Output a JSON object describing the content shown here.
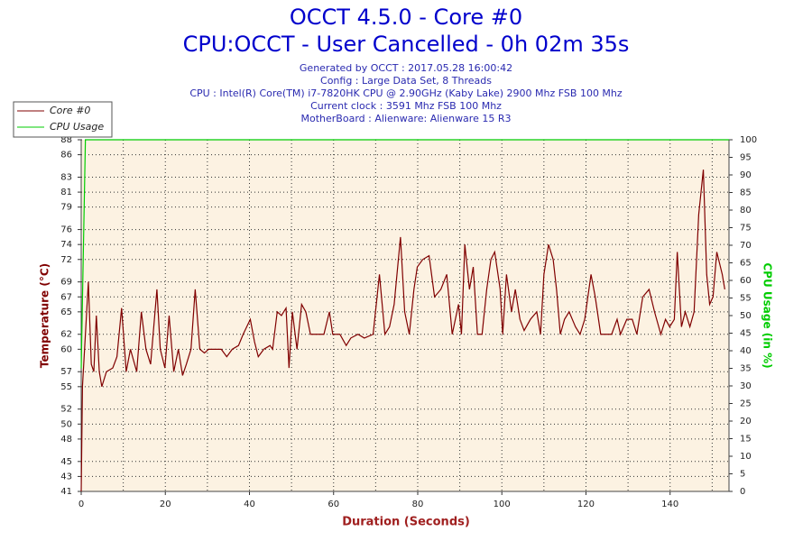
{
  "chart_data": {
    "type": "line",
    "title": "OCCT 4.5.0 - Core #0",
    "subtitle": "CPU:OCCT - User Cancelled - 0h 02m 35s",
    "info": [
      "Generated by OCCT : 2017.05.28 16:00:42",
      "Config : Large Data Set, 8 Threads",
      "CPU : Intel(R) Core(TM) i7-7820HK CPU @ 2.90GHz (Kaby Lake) 2900 Mhz FSB 100 Mhz",
      "Current clock : 3591 Mhz FSB 100 Mhz",
      "MotherBoard : Alienware: Alienware 15 R3"
    ],
    "xlabel": "Duration (Seconds)",
    "ylabel": "Temperature (°C)",
    "y2label": "CPU Usage (in %)",
    "xlim": [
      0,
      154
    ],
    "xticks": [
      0,
      20,
      40,
      60,
      80,
      100,
      120,
      140
    ],
    "ylim": [
      41,
      88
    ],
    "yticks": [
      41,
      43,
      45,
      48,
      50,
      52,
      55,
      57,
      60,
      62,
      65,
      67,
      69,
      72,
      74,
      76,
      79,
      81,
      83,
      86,
      88
    ],
    "y2lim": [
      0,
      100
    ],
    "y2ticks": [
      0,
      5,
      10,
      15,
      20,
      25,
      30,
      35,
      40,
      45,
      50,
      55,
      60,
      65,
      70,
      75,
      80,
      85,
      90,
      95,
      100
    ],
    "grid": true,
    "legend": "upper left",
    "series": [
      {
        "name": "Core #0",
        "color": "#800000",
        "x": [
          0,
          0.3,
          1.7,
          2.4,
          3.0,
          3.6,
          4.3,
          4.9,
          6.0,
          7.5,
          8.5,
          9.6,
          10.7,
          11.7,
          13.2,
          14.3,
          15.4,
          16.5,
          18.0,
          18.8,
          19.9,
          20.9,
          22.0,
          23.1,
          24.1,
          25.0,
          26.1,
          27.1,
          28.2,
          29.3,
          30.3,
          33.3,
          34.6,
          35.9,
          37.4,
          38.5,
          40.2,
          41.2,
          42.1,
          43.4,
          44.9,
          45.5,
          46.6,
          47.6,
          48.7,
          49.4,
          50.2,
          51.3,
          52.4,
          53.4,
          54.5,
          55.6,
          57.7,
          59.0,
          59.8,
          61.5,
          63.0,
          64.1,
          65.8,
          67.3,
          69.4,
          70.9,
          72.2,
          73.3,
          74.4,
          75.9,
          76.9,
          78.0,
          79.1,
          79.9,
          81.2,
          82.7,
          84.0,
          85.5,
          86.9,
          88.2,
          89.7,
          90.4,
          91.2,
          92.3,
          93.2,
          94.2,
          95.3,
          96.4,
          97.4,
          98.3,
          99.6,
          100.2,
          101.1,
          102.3,
          103.2,
          104.3,
          105.3,
          106.8,
          108.3,
          109.2,
          110.0,
          111.1,
          112.2,
          113.0,
          113.9,
          114.9,
          116.0,
          117.5,
          118.6,
          119.7,
          121.2,
          122.2,
          123.5,
          124.8,
          126.1,
          127.4,
          128.2,
          129.7,
          131.0,
          132.1,
          133.5,
          135.0,
          136.3,
          137.8,
          138.9,
          139.9,
          141.0,
          141.7,
          142.7,
          143.6,
          144.7,
          145.7,
          146.8,
          147.9,
          148.7,
          149.4,
          150.2,
          151.1,
          152.4,
          153.0
        ],
        "values": [
          41,
          55,
          69,
          58,
          57,
          64.5,
          57,
          55,
          57,
          57.5,
          59,
          65.5,
          57,
          60,
          57,
          65,
          60,
          58,
          68,
          60,
          57.5,
          64.5,
          57,
          60,
          56.5,
          58,
          60,
          68,
          60,
          59.5,
          60,
          60,
          59,
          60,
          60.5,
          62,
          64,
          61,
          59,
          60,
          60.5,
          60,
          65,
          64.5,
          65.5,
          57.5,
          65,
          60,
          66,
          65,
          62,
          62,
          62,
          65,
          62,
          62,
          60.5,
          61.5,
          62,
          61.5,
          62,
          70,
          62,
          63,
          66,
          75,
          65,
          62,
          68,
          71,
          72,
          72.5,
          67,
          68,
          70,
          62,
          66,
          62,
          74,
          68,
          71,
          62,
          62,
          68,
          72,
          73,
          68,
          62,
          70,
          65,
          68,
          64,
          62.5,
          64,
          65,
          62,
          70,
          74,
          72,
          68,
          62,
          64,
          65,
          63,
          62,
          64,
          70,
          67,
          62,
          62,
          62,
          64,
          62,
          64,
          64,
          62,
          67,
          68,
          65,
          62,
          64,
          63,
          64,
          73,
          63,
          65,
          63,
          65,
          78,
          84,
          70,
          66,
          67,
          73,
          70,
          68
        ]
      },
      {
        "name": "CPU Usage",
        "color": "#00cc00",
        "axis": "y2",
        "x": [
          0,
          1,
          154
        ],
        "values": [
          35,
          100,
          100
        ]
      }
    ]
  }
}
